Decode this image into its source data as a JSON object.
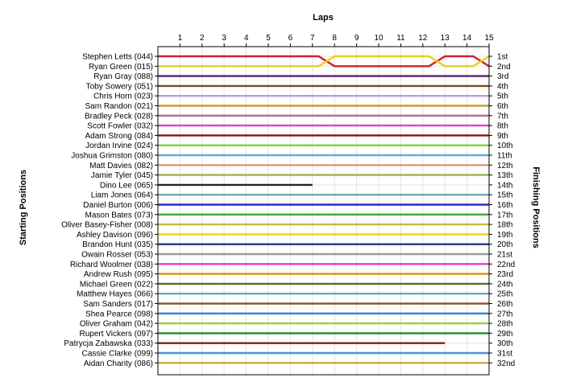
{
  "chart_data": {
    "type": "line",
    "title": "Laps",
    "xlabel": "Laps",
    "ylabel_left": "Starting Positions",
    "ylabel_right": "Finishing Positions",
    "laps": [
      1,
      2,
      3,
      4,
      5,
      6,
      7,
      8,
      9,
      10,
      11,
      12,
      13,
      14,
      15
    ],
    "xlim": [
      0,
      15
    ],
    "ylim": [
      1,
      32
    ],
    "grid": true,
    "starting_labels": [
      "Stephen Letts (044)",
      "Ryan Green (015)",
      "Ryan Gray (088)",
      "Toby Sowery (051)",
      "Chris Horn (023)",
      "Sam Randon (021)",
      "Bradley Peck (028)",
      "Scott Fowler (032)",
      "Adam Strong (084)",
      "Jordan Irvine (024)",
      "Joshua Grimston (080)",
      "Matt Davies (082)",
      "Jamie Tyler (045)",
      "Dino Lee (065)",
      "Liam Jones (064)",
      "Daniel Burton (006)",
      "Mason Bates (073)",
      "Oliver Basey-Fisher (008)",
      "Ashley Davison (096)",
      "Brandon Hunt (035)",
      "Owain Rosser (053)",
      "Richard Woolmer (038)",
      "Andrew Rush (095)",
      "Michael Green (022)",
      "Matthew Hayes (066)",
      "Sam Sanders (017)",
      "Shea Pearce (098)",
      "Oliver Graham (042)",
      "Rupert Vickers (097)",
      "Patrycja Zabawska (033)",
      "Cassie Clarke (099)",
      "Aidan Charity (086)"
    ],
    "finishing_labels": [
      "1st",
      "2nd",
      "3rd",
      "4th",
      "5th",
      "6th",
      "7th",
      "8th",
      "9th",
      "10th",
      "11th",
      "12th",
      "13th",
      "14th",
      "15th",
      "16th",
      "17th",
      "18th",
      "19th",
      "20th",
      "21st",
      "22nd",
      "23rd",
      "24th",
      "25th",
      "26th",
      "27th",
      "28th",
      "29th",
      "30th",
      "31st",
      "32nd"
    ],
    "series": [
      {
        "color": "#d21f2b",
        "positions": [
          1,
          1,
          1,
          1,
          1,
          1,
          1,
          1,
          2,
          2,
          2,
          2,
          2,
          1,
          1,
          2
        ]
      },
      {
        "color": "#e6d21a",
        "positions": [
          2,
          2,
          2,
          2,
          2,
          2,
          2,
          2,
          1,
          1,
          1,
          1,
          1,
          2,
          2,
          1
        ]
      },
      {
        "color": "#5a1e6e",
        "positions": [
          3,
          3,
          3,
          3,
          3,
          3,
          3,
          3,
          3,
          3,
          3,
          3,
          3,
          3,
          3,
          3
        ]
      },
      {
        "color": "#7a4a1e",
        "positions": [
          4,
          4,
          4,
          4,
          4,
          4,
          4,
          4,
          4,
          4,
          4,
          4,
          4,
          4,
          4,
          4
        ]
      },
      {
        "color": "#b0a3d8",
        "positions": [
          5,
          5,
          5,
          5,
          5,
          5,
          5,
          5,
          5,
          5,
          5,
          5,
          5,
          5,
          5,
          5
        ]
      },
      {
        "color": "#c89a30",
        "positions": [
          6,
          6,
          6,
          6,
          6,
          6,
          6,
          6,
          6,
          6,
          6,
          6,
          6,
          6,
          6,
          6
        ]
      },
      {
        "color": "#b06a9a",
        "positions": [
          7,
          7,
          7,
          7,
          7,
          7,
          7,
          7,
          7,
          7,
          7,
          7,
          7,
          7,
          7,
          7
        ]
      },
      {
        "color": "#e63ad2",
        "positions": [
          8,
          8,
          8,
          8,
          8,
          8,
          8,
          8,
          8,
          8,
          8,
          8,
          8,
          8,
          8,
          8
        ]
      },
      {
        "color": "#8b1010",
        "positions": [
          9,
          9,
          9,
          9,
          9,
          9,
          9,
          9,
          9,
          9,
          9,
          9,
          9,
          9,
          9,
          9
        ]
      },
      {
        "color": "#7ad23a",
        "positions": [
          10,
          10,
          10,
          10,
          10,
          10,
          10,
          10,
          10,
          10,
          10,
          10,
          10,
          10,
          10,
          10
        ]
      },
      {
        "color": "#6aa8d8",
        "positions": [
          11,
          11,
          11,
          11,
          11,
          11,
          11,
          11,
          11,
          11,
          11,
          11,
          11,
          11,
          11,
          11
        ]
      },
      {
        "color": "#d99a78",
        "positions": [
          12,
          12,
          12,
          12,
          12,
          12,
          12,
          12,
          12,
          12,
          12,
          12,
          12,
          12,
          12,
          12
        ]
      },
      {
        "color": "#9ab44a",
        "positions": [
          13,
          13,
          13,
          13,
          13,
          13,
          13,
          13,
          13,
          13,
          13,
          13,
          13,
          13,
          13,
          13
        ]
      },
      {
        "color": "#222222",
        "positions": [
          14,
          14,
          14,
          14,
          14,
          14,
          14,
          14
        ]
      },
      {
        "color": "#6ab0a8",
        "positions": [
          15,
          15,
          15,
          15,
          15,
          15,
          15,
          15,
          15,
          15,
          15,
          15,
          15,
          15,
          15,
          15
        ]
      },
      {
        "color": "#2a2ad2",
        "positions": [
          16,
          16,
          16,
          16,
          16,
          16,
          16,
          16,
          16,
          16,
          16,
          16,
          16,
          16,
          16,
          16
        ]
      },
      {
        "color": "#3aa83a",
        "positions": [
          17,
          17,
          17,
          17,
          17,
          17,
          17,
          17,
          17,
          17,
          17,
          17,
          17,
          17,
          17,
          17
        ]
      },
      {
        "color": "#c8b83a",
        "positions": [
          18,
          18,
          18,
          18,
          18,
          18,
          18,
          18,
          18,
          18,
          18,
          18,
          18,
          18,
          18,
          18
        ]
      },
      {
        "color": "#e6d21a",
        "positions": [
          19,
          19,
          19,
          19,
          19,
          19,
          19,
          19,
          19,
          19,
          19,
          19,
          19,
          19,
          19,
          19
        ]
      },
      {
        "color": "#1e3a8a",
        "positions": [
          20,
          20,
          20,
          20,
          20,
          20,
          20,
          20,
          20,
          20,
          20,
          20,
          20,
          20,
          20,
          20
        ]
      },
      {
        "color": "#9a9a9a",
        "positions": [
          21,
          21,
          21,
          21,
          21,
          21,
          21,
          21,
          21,
          21,
          21,
          21,
          21,
          21,
          21,
          21
        ]
      },
      {
        "color": "#e03ad2",
        "positions": [
          22,
          22,
          22,
          22,
          22,
          22,
          22,
          22,
          22,
          22,
          22,
          22,
          22,
          22,
          22,
          22
        ]
      },
      {
        "color": "#e08a1a",
        "positions": [
          23,
          23,
          23,
          23,
          23,
          23,
          23,
          23,
          23,
          23,
          23,
          23,
          23,
          23,
          23,
          23
        ]
      },
      {
        "color": "#556b2f",
        "positions": [
          24,
          24,
          24,
          24,
          24,
          24,
          24,
          24,
          24,
          24,
          24,
          24,
          24,
          24,
          24,
          24
        ]
      },
      {
        "color": "#6aa8a8",
        "positions": [
          25,
          25,
          25,
          25,
          25,
          25,
          25,
          25,
          25,
          25,
          25,
          25,
          25,
          25,
          25,
          25
        ]
      },
      {
        "color": "#8a5a2a",
        "positions": [
          26,
          26,
          26,
          26,
          26,
          26,
          26,
          26,
          26,
          26,
          26,
          26,
          26,
          26,
          26,
          26
        ]
      },
      {
        "color": "#2a88d8",
        "positions": [
          27,
          27,
          27,
          27,
          27,
          27,
          27,
          27,
          27,
          27,
          27,
          27,
          27,
          27,
          27,
          27
        ]
      },
      {
        "color": "#9ad23a",
        "positions": [
          28,
          28,
          28,
          28,
          28,
          28,
          28,
          28,
          28,
          28,
          28,
          28,
          28,
          28,
          28,
          28
        ]
      },
      {
        "color": "#1e8a2a",
        "positions": [
          29,
          29,
          29,
          29,
          29,
          29,
          29,
          29,
          29,
          29,
          29,
          29,
          29,
          29,
          29,
          29
        ]
      },
      {
        "color": "#8a1a1a",
        "positions": [
          30,
          30,
          30,
          30,
          30,
          30,
          30,
          30,
          30,
          30,
          30,
          30,
          30,
          30
        ]
      },
      {
        "color": "#4a90d8",
        "positions": [
          31,
          31,
          31,
          31,
          31,
          31,
          31,
          31,
          31,
          31,
          31,
          31,
          31,
          31,
          31,
          31
        ]
      },
      {
        "color": "#c8a83a",
        "positions": [
          32,
          32,
          32,
          32,
          32,
          32,
          32,
          32,
          32,
          32,
          32,
          32,
          32,
          32,
          32,
          32
        ]
      }
    ]
  }
}
